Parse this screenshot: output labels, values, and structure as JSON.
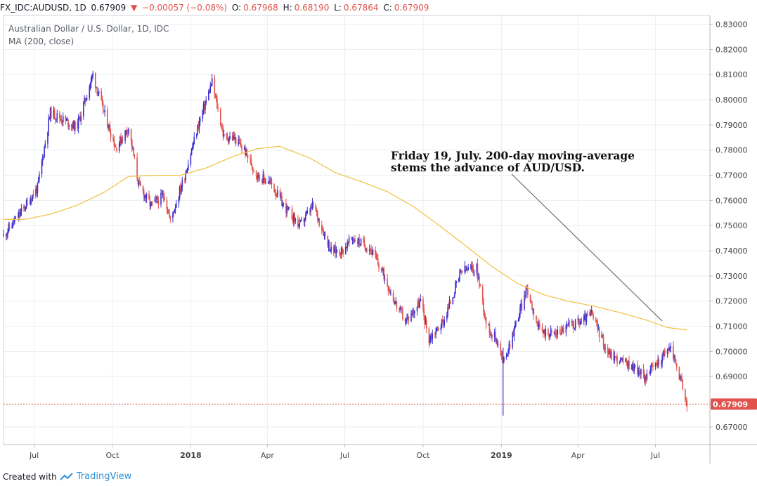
{
  "header": {
    "symbol": "FX_IDC:AUDUSD, 1D",
    "last": "0.67909",
    "change": "−0.00057 (−0.08%)",
    "o_label": "O:",
    "o_value": "0.67968",
    "h_label": "H:",
    "h_value": "0.68190",
    "l_label": "L:",
    "l_value": "0.67864",
    "c_label": "C:",
    "c_value": "0.67909"
  },
  "legend": {
    "title": "Australian Dollar / U.S. Dollar, 1D, IDC",
    "indicator": "MA (200, close)"
  },
  "annotation": {
    "line1": "Friday 19, July. 200-day moving-average",
    "line2": "stems the advance of AUD/USD."
  },
  "footer": {
    "created_with": "Created with",
    "brand": "TradingView"
  },
  "colors": {
    "up": "#3b2fd0",
    "down": "#e0524b",
    "ma": "#f0c040",
    "grid": "#eceef2",
    "price_tag": "#e0524b"
  },
  "chart_data": {
    "type": "line",
    "title": "Australian Dollar / U.S. Dollar, 1D, IDC",
    "ylim": [
      0.663,
      0.8335
    ],
    "y_ticks": [
      "0.83000",
      "0.82000",
      "0.81000",
      "0.80000",
      "0.79000",
      "0.78000",
      "0.77000",
      "0.76000",
      "0.75000",
      "0.74000",
      "0.73000",
      "0.72000",
      "0.71000",
      "0.70000",
      "0.69000",
      "0.67000"
    ],
    "y_tick_values": [
      0.83,
      0.82,
      0.81,
      0.8,
      0.79,
      0.78,
      0.77,
      0.76,
      0.75,
      0.74,
      0.73,
      0.72,
      0.71,
      0.7,
      0.69,
      0.67
    ],
    "x_ticks": [
      "Jul",
      "Oct",
      "2018",
      "Apr",
      "Jul",
      "Oct",
      "2019",
      "Apr",
      "Jul"
    ],
    "x_tick_dates": [
      "2017-07-01",
      "2017-10-01",
      "2018-01-01",
      "2018-04-01",
      "2018-07-01",
      "2018-10-01",
      "2019-01-01",
      "2019-04-01",
      "2019-07-01"
    ],
    "x_range": [
      "2017-05-26",
      "2019-09-03"
    ],
    "last_price": 0.67909,
    "last_price_label": "0.67909",
    "series": [
      {
        "type": "candlestick-approx",
        "x": [
          "2017-05-26",
          "2017-06-15",
          "2017-07-05",
          "2017-07-20",
          "2017-08-05",
          "2017-08-20",
          "2017-09-08",
          "2017-09-20",
          "2017-10-05",
          "2017-10-20",
          "2017-11-01",
          "2017-11-15",
          "2017-12-01",
          "2017-12-08",
          "2017-12-25",
          "2018-01-10",
          "2018-01-26",
          "2018-02-09",
          "2018-02-20",
          "2018-03-05",
          "2018-03-20",
          "2018-04-05",
          "2018-04-20",
          "2018-05-09",
          "2018-05-25",
          "2018-06-15",
          "2018-06-28",
          "2018-07-10",
          "2018-07-31",
          "2018-08-15",
          "2018-08-31",
          "2018-09-11",
          "2018-09-28",
          "2018-10-08",
          "2018-10-25",
          "2018-11-15",
          "2018-12-03",
          "2018-12-15",
          "2018-12-28",
          "2019-01-03",
          "2019-01-31",
          "2019-02-15",
          "2019-03-05",
          "2019-03-20",
          "2019-04-05",
          "2019-04-17",
          "2019-05-05",
          "2019-05-17",
          "2019-06-05",
          "2019-06-18",
          "2019-07-05",
          "2019-07-19",
          "2019-08-02",
          "2019-08-07"
        ],
        "values": [
          0.746,
          0.755,
          0.765,
          0.795,
          0.792,
          0.789,
          0.81,
          0.796,
          0.781,
          0.789,
          0.766,
          0.758,
          0.762,
          0.752,
          0.77,
          0.79,
          0.807,
          0.785,
          0.785,
          0.78,
          0.77,
          0.767,
          0.758,
          0.75,
          0.758,
          0.74,
          0.74,
          0.745,
          0.741,
          0.731,
          0.718,
          0.712,
          0.72,
          0.705,
          0.712,
          0.732,
          0.733,
          0.71,
          0.704,
          0.695,
          0.725,
          0.708,
          0.707,
          0.71,
          0.712,
          0.715,
          0.7,
          0.697,
          0.694,
          0.69,
          0.696,
          0.702,
          0.686,
          0.6791
        ]
      },
      {
        "name": "MA (200, close)",
        "type": "line",
        "x": [
          "2017-05-26",
          "2017-06-20",
          "2017-07-20",
          "2017-08-20",
          "2017-09-20",
          "2017-10-20",
          "2017-11-20",
          "2017-12-20",
          "2018-01-20",
          "2018-02-20",
          "2018-03-20",
          "2018-04-15",
          "2018-05-20",
          "2018-06-20",
          "2018-07-20",
          "2018-08-20",
          "2018-09-20",
          "2018-10-20",
          "2018-11-20",
          "2018-12-20",
          "2019-01-20",
          "2019-02-20",
          "2019-03-20",
          "2019-04-20",
          "2019-05-20",
          "2019-06-20",
          "2019-07-15",
          "2019-08-07"
        ],
        "values": [
          0.7525,
          0.7525,
          0.7545,
          0.758,
          0.763,
          0.7695,
          0.77,
          0.77,
          0.773,
          0.7775,
          0.7805,
          0.7815,
          0.777,
          0.771,
          0.7675,
          0.7635,
          0.7575,
          0.75,
          0.742,
          0.734,
          0.727,
          0.7225,
          0.72,
          0.718,
          0.7155,
          0.7125,
          0.7095,
          0.7085
        ]
      }
    ]
  }
}
